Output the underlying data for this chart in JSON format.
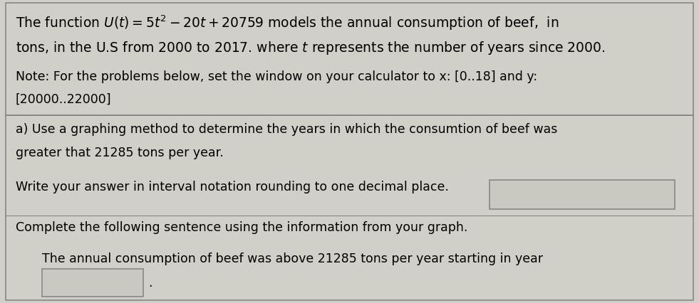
{
  "bg_color": "#d0cfc8",
  "text_color": "#000000",
  "border_color": "#888888",
  "fig_width": 9.81,
  "fig_height": 4.27,
  "dpi": 100,
  "line1": "The function $U(t) = 5t^2 - 20t + 20759$ models the annual consumption of beef,  in",
  "line2": "tons, in the U.S from 2000 to 2017. where $t$ represents the number of years since 2000.",
  "line3": "Note: For the problems below, set the window on your calculator to x: [0..18] and y:",
  "line4": "[20000..22000]",
  "line5": "a) Use a graphing method to determine the years in which the consumtion of beef was",
  "line6": "greater that 21285 tons per year.",
  "line7": "Write your answer in interval notation rounding to one decimal place.",
  "line8": "Complete the following sentence using the information from your graph.",
  "line9": "The annual consumption of beef was above 21285 tons per year starting in year",
  "font_size_main": 13.5,
  "font_size_small": 12.5
}
